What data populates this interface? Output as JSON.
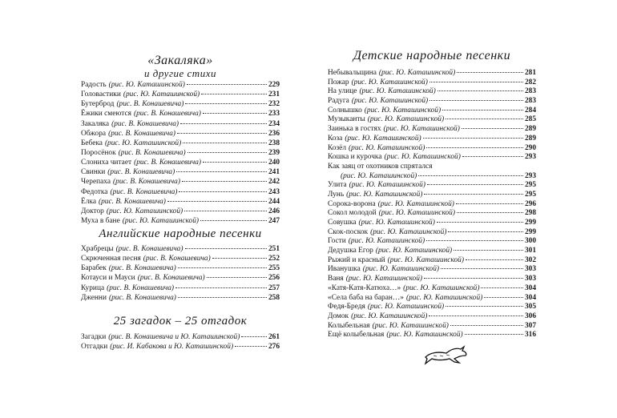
{
  "left": {
    "section1": {
      "title_line1": "«Закаляка»",
      "title_line2": "и другие стихи",
      "entries": [
        {
          "title": "Радость",
          "credit": "(рис. Ю. Каташинской)",
          "page": "229"
        },
        {
          "title": "Головастики",
          "credit": "(рис. Ю. Каташинской)",
          "page": "231"
        },
        {
          "title": "Бутерброд",
          "credit": "(рис. В. Конашевича)",
          "page": "232"
        },
        {
          "title": "Ёжики смеются",
          "credit": "(рис. В. Конашевича)",
          "page": "233"
        },
        {
          "title": "Закаляка",
          "credit": "(рис. В. Конашевича)",
          "page": "234"
        },
        {
          "title": "Обжора",
          "credit": "(рис. В. Конашевича)",
          "page": "236"
        },
        {
          "title": "Бебека",
          "credit": "(рис. Ю. Каташинской)",
          "page": "238"
        },
        {
          "title": "Поросёнок",
          "credit": "(рис. В. Конашевича)",
          "page": "239"
        },
        {
          "title": "Слониха читает",
          "credit": "(рис. В. Конашевича)",
          "page": "240"
        },
        {
          "title": "Свинки",
          "credit": "(рис. В. Конашевича)",
          "page": "241"
        },
        {
          "title": "Черепаха",
          "credit": "(рис. В. Конашевича)",
          "page": "242"
        },
        {
          "title": "Федотка",
          "credit": "(рис. В. Конашевича)",
          "page": "243"
        },
        {
          "title": "Ёлка",
          "credit": "(рис. В. Конашевича)",
          "page": "244"
        },
        {
          "title": "Доктор",
          "credit": "(рис. Ю. Каташинской)",
          "page": "246"
        },
        {
          "title": "Муха в бане",
          "credit": "(рис. Ю. Каташинской)",
          "page": "247"
        }
      ]
    },
    "section2": {
      "title": "Английские народные песенки",
      "entries": [
        {
          "title": "Храбрецы",
          "credit": "(рис. В. Конашевича)",
          "page": "251"
        },
        {
          "title": "Скрюченная песня",
          "credit": "(рис. В. Конашевича)",
          "page": "252"
        },
        {
          "title": "Барабек",
          "credit": "(рис. В. Конашевича)",
          "page": "255"
        },
        {
          "title": "Котауси и Мауси",
          "credit": "(рис. В. Конашевича)",
          "page": "256"
        },
        {
          "title": "Курица",
          "credit": "(рис. В. Конашевича)",
          "page": "257"
        },
        {
          "title": "Дженни",
          "credit": "(рис. В. Конашевича)",
          "page": "258"
        }
      ]
    },
    "section3": {
      "title": "25 загадок – 25 отгадок",
      "entries": [
        {
          "title": "Загадки",
          "credit": "(рис. В. Конашевича и Ю. Каташинской)",
          "page": "261"
        },
        {
          "title": "Отгадки",
          "credit": "(рис. И. Кабакова и Ю. Каташинской)",
          "page": "276"
        }
      ]
    }
  },
  "right": {
    "section": {
      "title": "Детские народные песенки",
      "entries_a": [
        {
          "title": "Небывальщина",
          "credit": "(рис. Ю. Каташинской)",
          "page": "281"
        },
        {
          "title": "Пожар",
          "credit": "(рис. Ю. Каташинской)",
          "page": "282"
        },
        {
          "title": "На улице",
          "credit": "(рис. Ю. Каташинской)",
          "page": "283"
        },
        {
          "title": "Радуга",
          "credit": "(рис. Ю. Каташинской)",
          "page": "283"
        },
        {
          "title": "Солнышко",
          "credit": "(рис. Ю. Каташинской)",
          "page": "284"
        },
        {
          "title": "Музыканты",
          "credit": "(рис. Ю. Каташинской)",
          "page": "285"
        },
        {
          "title": "Заинька в гостях",
          "credit": "(рис. Ю. Каташинской)",
          "page": "289"
        },
        {
          "title": "Коза",
          "credit": "(рис. Ю. Каташинской)",
          "page": "289"
        },
        {
          "title": "Козёл",
          "credit": "(рис. Ю. Каташинской)",
          "page": "290"
        },
        {
          "title": "Кошка и курочка",
          "credit": "(рис. Ю. Каташинской)",
          "page": "293"
        }
      ],
      "wrapped": {
        "title": "Как заяц от охотников спрятался",
        "credit": "(рис. Ю. Каташинской)",
        "page": "293"
      },
      "entries_b": [
        {
          "title": "Улита",
          "credit": "(рис. Ю. Каташинской)",
          "page": "295"
        },
        {
          "title": "Лунь",
          "credit": "(рис. Ю. Каташинской)",
          "page": "295"
        },
        {
          "title": "Сорока-ворона",
          "credit": "(рис. Ю. Каташинской)",
          "page": "296"
        },
        {
          "title": "Сокол молодой",
          "credit": "(рис. Ю. Каташинской)",
          "page": "298"
        },
        {
          "title": "Совушка",
          "credit": "(рис. Ю. Каташинской)",
          "page": "299"
        },
        {
          "title": "Скок-поскок",
          "credit": "(рис. Ю. Каташинской)",
          "page": "299"
        },
        {
          "title": "Гости",
          "credit": "(рис. Ю. Каташинской)",
          "page": "300"
        },
        {
          "title": "Дедушка Егор",
          "credit": "(рис. Ю. Каташинской)",
          "page": "301"
        },
        {
          "title": "Рыжий и красный",
          "credit": "(рис. Ю. Каташинской)",
          "page": "302"
        },
        {
          "title": "Иванушка",
          "credit": "(рис. Ю. Каташинской)",
          "page": "303"
        },
        {
          "title": "Ваня",
          "credit": "(рис. Ю. Каташинской)",
          "page": "303"
        },
        {
          "title": "«Катя-Катя-Катюха…»",
          "credit": "(рис. Ю. Каташинской)",
          "page": "304"
        },
        {
          "title": "«Села баба на баран…»",
          "credit": "(рис. Ю. Каташинской)",
          "page": "304"
        },
        {
          "title": "Федя-Бредя",
          "credit": "(рис. Ю. Каташинской)",
          "page": "305"
        },
        {
          "title": "Домок",
          "credit": "(рис. Ю. Каташинской)",
          "page": "306"
        },
        {
          "title": "Колыбельная",
          "credit": "(рис. Ю. Каташинской)",
          "page": "307"
        },
        {
          "title": "Ещё колыбельная",
          "credit": "(рис. Ю. Каташинской)",
          "page": "316"
        }
      ]
    },
    "vignette_icon": "running-hare-icon"
  }
}
